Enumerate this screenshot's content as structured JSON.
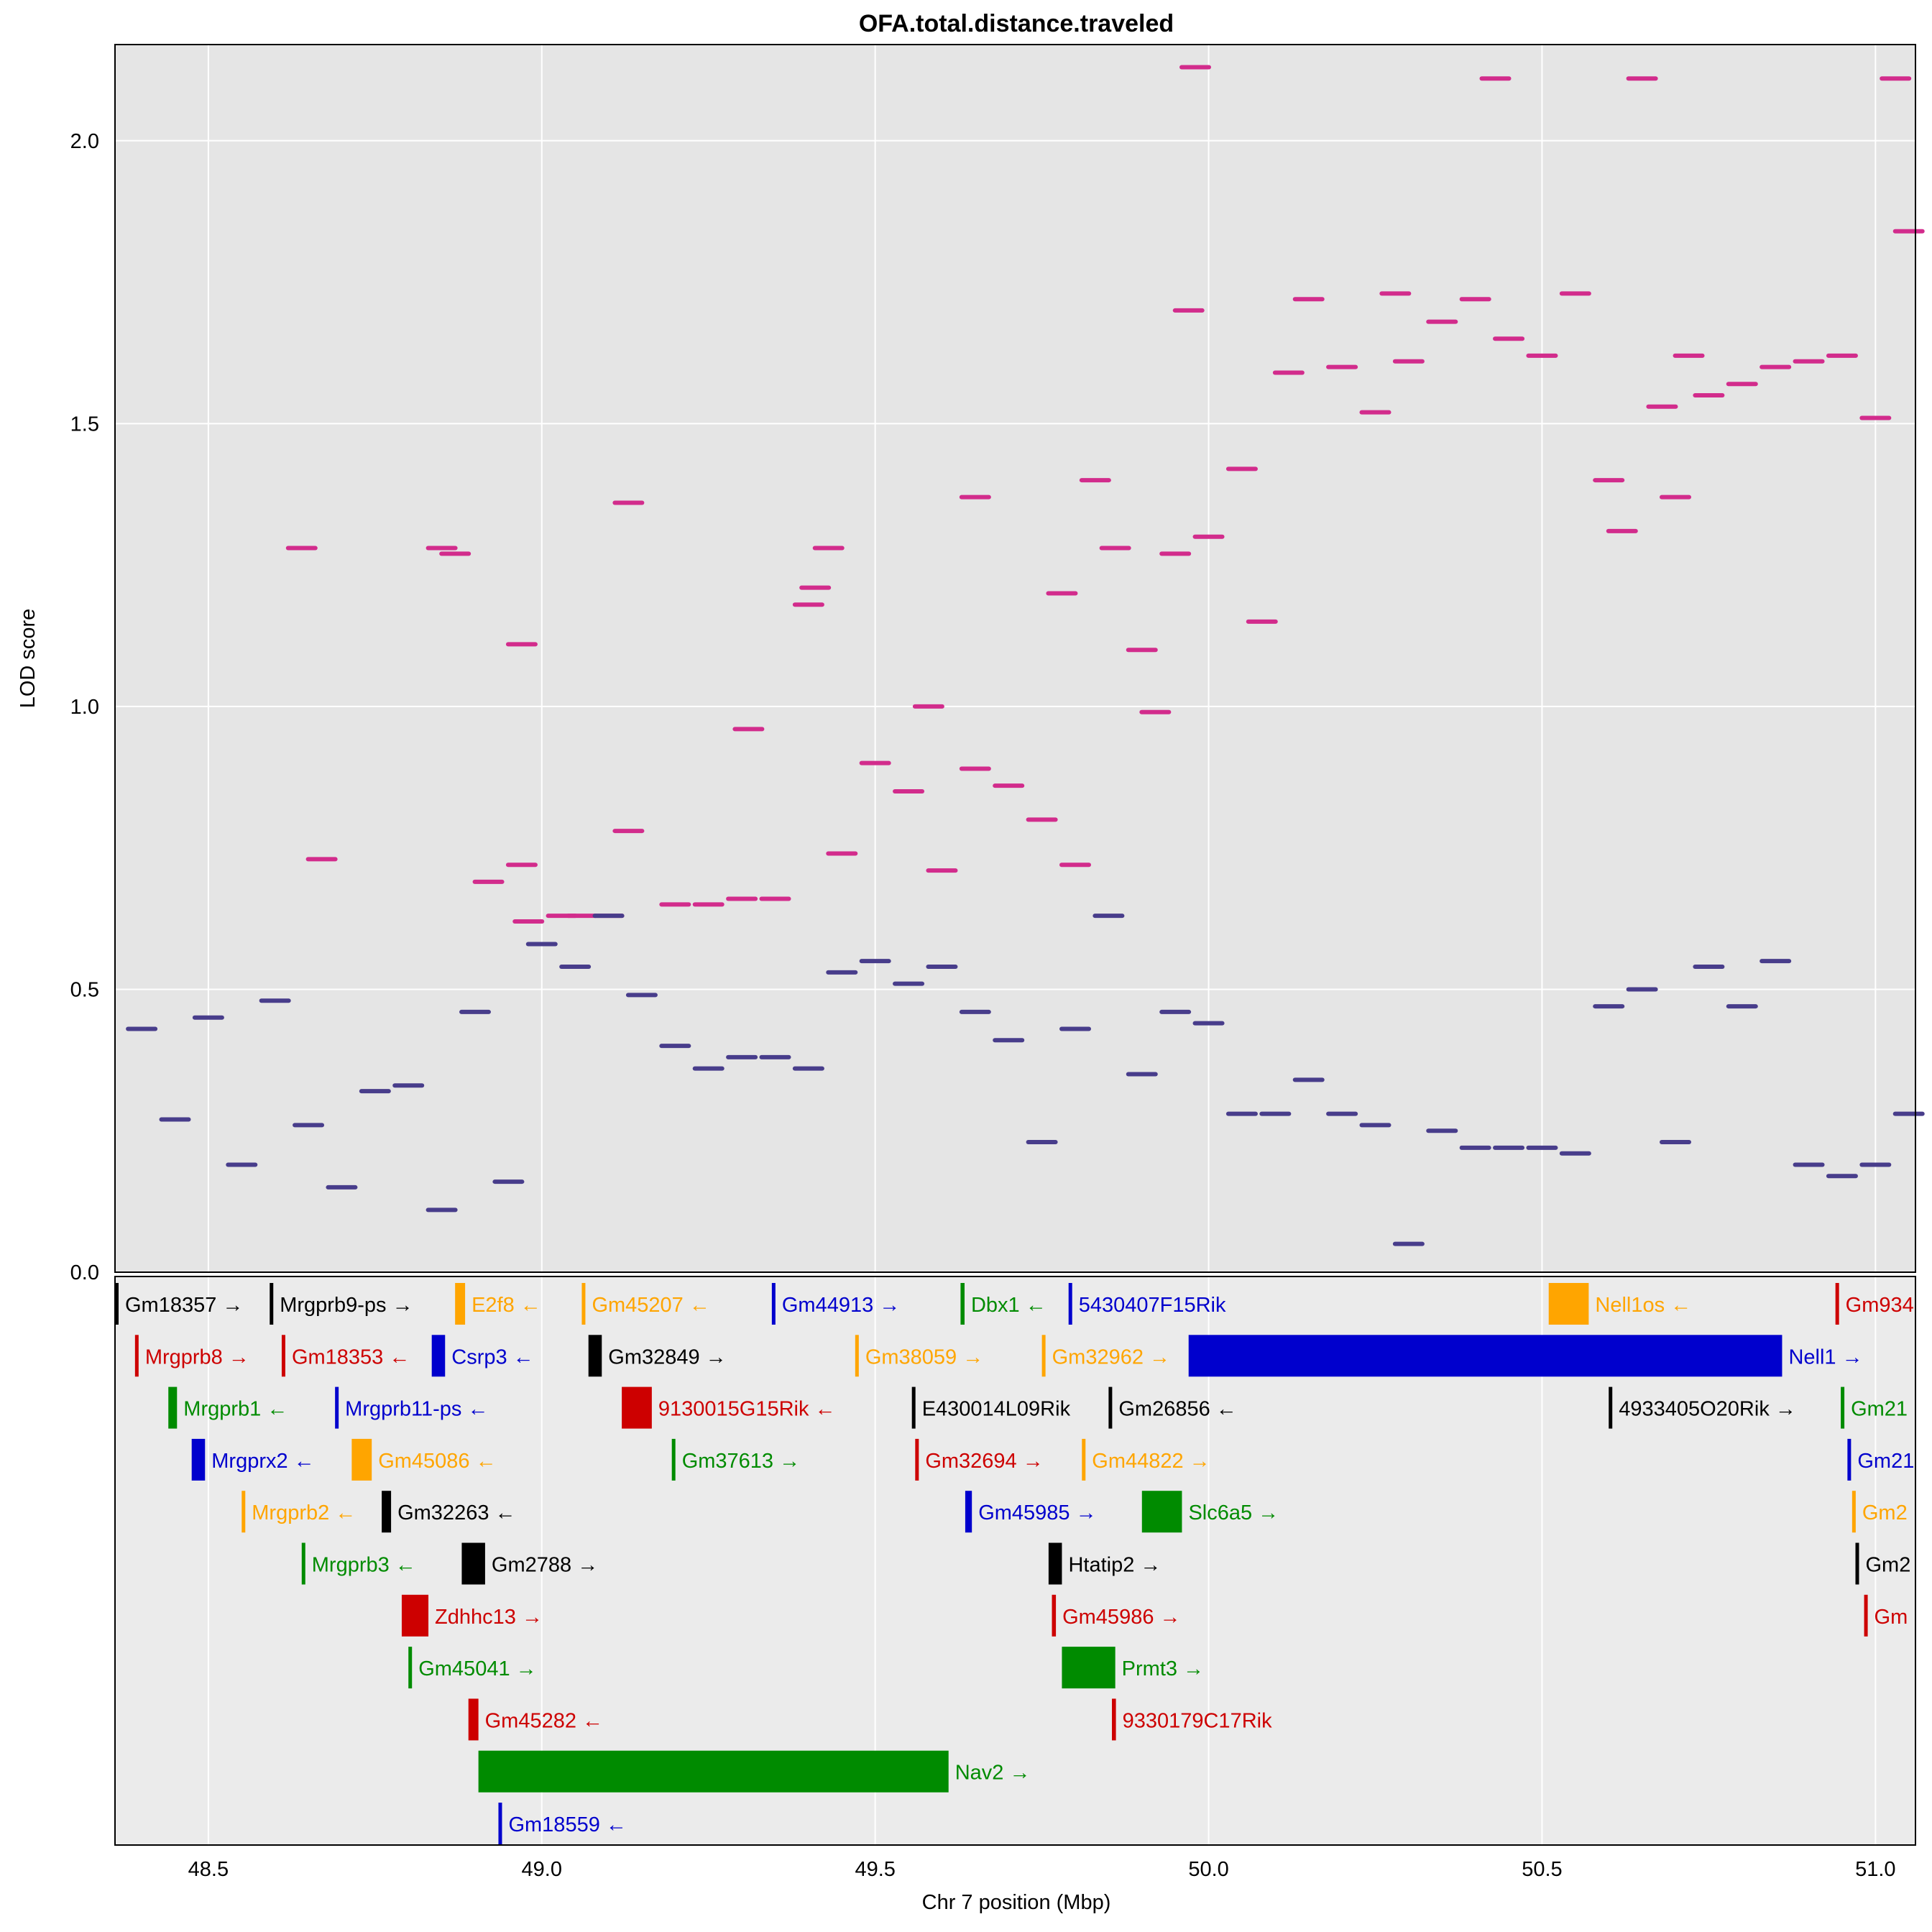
{
  "chart_data": {
    "type": "scatter",
    "title": "OFA.total.distance.traveled",
    "xlabel": "Chr 7 position (Mbp)",
    "ylabel": "LOD score",
    "xlim": [
      48.36,
      51.06
    ],
    "ylim": [
      0.0,
      2.17
    ],
    "x_ticks": [
      48.5,
      49.0,
      49.5,
      50.0,
      50.5,
      51.0
    ],
    "x_tick_labels": [
      "48.5",
      "49.0",
      "49.5",
      "50.0",
      "50.5",
      "51.0"
    ],
    "y_ticks": [
      0.0,
      0.5,
      1.0,
      1.5,
      2.0
    ],
    "y_tick_labels": [
      "0.0",
      "0.5",
      "1.0",
      "1.5",
      "2.0"
    ],
    "grid": true,
    "background": "#e5e5e5",
    "series": [
      {
        "color": "#d22c8c",
        "description_points": [
          [
            48.64,
            1.28
          ],
          [
            48.67,
            0.73
          ],
          [
            48.85,
            1.28
          ],
          [
            48.87,
            1.27
          ],
          [
            48.92,
            0.69
          ],
          [
            48.97,
            1.11
          ],
          [
            48.97,
            0.72
          ],
          [
            48.98,
            0.62
          ],
          [
            49.03,
            0.63
          ],
          [
            49.06,
            0.63
          ],
          [
            49.1,
            0.63
          ],
          [
            49.13,
            1.36
          ],
          [
            49.13,
            0.78
          ],
          [
            49.2,
            0.65
          ],
          [
            49.25,
            0.65
          ],
          [
            49.3,
            0.66
          ],
          [
            49.31,
            0.96
          ],
          [
            49.35,
            0.66
          ],
          [
            49.4,
            1.18
          ],
          [
            49.41,
            1.21
          ],
          [
            49.43,
            1.28
          ],
          [
            49.45,
            0.74
          ],
          [
            49.5,
            0.9
          ],
          [
            49.55,
            0.85
          ],
          [
            49.58,
            1.0
          ],
          [
            49.6,
            0.71
          ],
          [
            49.65,
            1.37
          ],
          [
            49.65,
            0.89
          ],
          [
            49.7,
            0.86
          ],
          [
            49.75,
            0.8
          ],
          [
            49.78,
            1.2
          ],
          [
            49.8,
            0.72
          ],
          [
            49.83,
            1.4
          ],
          [
            49.86,
            1.28
          ],
          [
            49.9,
            1.1
          ],
          [
            49.92,
            0.99
          ],
          [
            49.95,
            1.27
          ],
          [
            49.97,
            1.7
          ],
          [
            49.98,
            2.13
          ],
          [
            50.0,
            1.3
          ],
          [
            50.05,
            1.42
          ],
          [
            50.08,
            1.15
          ],
          [
            50.12,
            1.59
          ],
          [
            50.15,
            1.72
          ],
          [
            50.2,
            1.6
          ],
          [
            50.25,
            1.52
          ],
          [
            50.28,
            1.73
          ],
          [
            50.3,
            1.61
          ],
          [
            50.35,
            1.68
          ],
          [
            50.4,
            1.72
          ],
          [
            50.43,
            2.11
          ],
          [
            50.45,
            1.65
          ],
          [
            50.5,
            1.62
          ],
          [
            50.55,
            1.73
          ],
          [
            50.6,
            1.4
          ],
          [
            50.62,
            1.31
          ],
          [
            50.65,
            2.11
          ],
          [
            50.68,
            1.53
          ],
          [
            50.7,
            1.37
          ],
          [
            50.72,
            1.62
          ],
          [
            50.75,
            1.55
          ],
          [
            50.8,
            1.57
          ],
          [
            50.85,
            1.6
          ],
          [
            50.9,
            1.61
          ],
          [
            50.95,
            1.62
          ],
          [
            51.0,
            1.51
          ],
          [
            51.03,
            2.11
          ],
          [
            51.05,
            1.84
          ]
        ]
      },
      {
        "color": "#483d8b",
        "description_points": [
          [
            48.4,
            0.43
          ],
          [
            48.45,
            0.27
          ],
          [
            48.5,
            0.45
          ],
          [
            48.55,
            0.19
          ],
          [
            48.6,
            0.48
          ],
          [
            48.65,
            0.26
          ],
          [
            48.7,
            0.15
          ],
          [
            48.75,
            0.32
          ],
          [
            48.8,
            0.33
          ],
          [
            48.85,
            0.11
          ],
          [
            48.9,
            0.46
          ],
          [
            48.95,
            0.16
          ],
          [
            49.0,
            0.58
          ],
          [
            49.05,
            0.54
          ],
          [
            49.1,
            0.63
          ],
          [
            49.15,
            0.49
          ],
          [
            49.2,
            0.4
          ],
          [
            49.25,
            0.36
          ],
          [
            49.3,
            0.38
          ],
          [
            49.35,
            0.38
          ],
          [
            49.4,
            0.36
          ],
          [
            49.45,
            0.53
          ],
          [
            49.5,
            0.55
          ],
          [
            49.55,
            0.51
          ],
          [
            49.6,
            0.54
          ],
          [
            49.65,
            0.46
          ],
          [
            49.7,
            0.41
          ],
          [
            49.75,
            0.23
          ],
          [
            49.8,
            0.43
          ],
          [
            49.85,
            0.63
          ],
          [
            49.9,
            0.35
          ],
          [
            49.95,
            0.46
          ],
          [
            50.0,
            0.44
          ],
          [
            50.05,
            0.28
          ],
          [
            50.1,
            0.28
          ],
          [
            50.15,
            0.34
          ],
          [
            50.2,
            0.28
          ],
          [
            50.25,
            0.26
          ],
          [
            50.3,
            0.05
          ],
          [
            50.35,
            0.25
          ],
          [
            50.4,
            0.22
          ],
          [
            50.45,
            0.22
          ],
          [
            50.5,
            0.22
          ],
          [
            50.55,
            0.21
          ],
          [
            50.6,
            0.47
          ],
          [
            50.65,
            0.5
          ],
          [
            50.7,
            0.23
          ],
          [
            50.75,
            0.54
          ],
          [
            50.8,
            0.47
          ],
          [
            50.85,
            0.55
          ],
          [
            50.9,
            0.19
          ],
          [
            50.95,
            0.17
          ],
          [
            51.0,
            0.19
          ],
          [
            51.05,
            0.28
          ]
        ]
      }
    ],
    "genes": [
      {
        "name": "Gm18357",
        "strand": "→",
        "start": 48.36,
        "end": 48.365,
        "row": 0,
        "color": "#000000"
      },
      {
        "name": "Mrgprb9-ps",
        "strand": "→",
        "start": 48.592,
        "end": 48.596,
        "row": 0,
        "color": "#000000"
      },
      {
        "name": "E2f8",
        "strand": "←",
        "start": 48.87,
        "end": 48.885,
        "row": 0,
        "color": "#ffa500"
      },
      {
        "name": "Gm45207",
        "strand": "←",
        "start": 49.06,
        "end": 49.064,
        "row": 0,
        "color": "#ffa500"
      },
      {
        "name": "Gm44913",
        "strand": "→",
        "start": 49.345,
        "end": 49.35,
        "row": 0,
        "color": "#0000cd"
      },
      {
        "name": "Dbx1",
        "strand": "←",
        "start": 49.628,
        "end": 49.634,
        "row": 0,
        "color": "#008b00"
      },
      {
        "name": "5430407F15Rik",
        "strand": "",
        "start": 49.79,
        "end": 49.795,
        "row": 0,
        "color": "#0000cd"
      },
      {
        "name": "Nell1os",
        "strand": "←",
        "start": 50.51,
        "end": 50.57,
        "row": 0,
        "color": "#ffa500"
      },
      {
        "name": "Gm934",
        "strand": "",
        "start": 50.94,
        "end": 50.945,
        "row": 0,
        "color": "#cd0000"
      },
      {
        "name": "Mrgprb8",
        "strand": "→",
        "start": 48.39,
        "end": 48.394,
        "row": 1,
        "color": "#cd0000"
      },
      {
        "name": "Gm18353",
        "strand": "←",
        "start": 48.61,
        "end": 48.614,
        "row": 1,
        "color": "#cd0000"
      },
      {
        "name": "Csrp3",
        "strand": "←",
        "start": 48.835,
        "end": 48.855,
        "row": 1,
        "color": "#0000cd"
      },
      {
        "name": "Gm32849",
        "strand": "→",
        "start": 49.07,
        "end": 49.09,
        "row": 1,
        "color": "#000000"
      },
      {
        "name": "Gm38059",
        "strand": "→",
        "start": 49.47,
        "end": 49.474,
        "row": 1,
        "color": "#ffa500"
      },
      {
        "name": "Gm32962",
        "strand": "→",
        "start": 49.75,
        "end": 49.754,
        "row": 1,
        "color": "#ffa500"
      },
      {
        "name": "Nell1",
        "strand": "→",
        "start": 49.97,
        "end": 50.86,
        "row": 1,
        "color": "#0000cd"
      },
      {
        "name": "Mrgprb1",
        "strand": "←",
        "start": 48.44,
        "end": 48.453,
        "row": 2,
        "color": "#008b00"
      },
      {
        "name": "Mrgprb11-ps",
        "strand": "←",
        "start": 48.69,
        "end": 48.694,
        "row": 2,
        "color": "#0000cd"
      },
      {
        "name": "9130015G15Rik",
        "strand": "←",
        "start": 49.12,
        "end": 49.165,
        "row": 2,
        "color": "#cd0000"
      },
      {
        "name": "E430014L09Rik",
        "strand": "",
        "start": 49.555,
        "end": 49.559,
        "row": 2,
        "color": "#000000"
      },
      {
        "name": "Gm26856",
        "strand": "←",
        "start": 49.85,
        "end": 49.854,
        "row": 2,
        "color": "#000000"
      },
      {
        "name": "4933405O20Rik",
        "strand": "→",
        "start": 50.6,
        "end": 50.604,
        "row": 2,
        "color": "#000000"
      },
      {
        "name": "Gm21",
        "strand": "",
        "start": 50.948,
        "end": 50.952,
        "row": 2,
        "color": "#008b00"
      },
      {
        "name": "Mrgprx2",
        "strand": "←",
        "start": 48.475,
        "end": 48.495,
        "row": 3,
        "color": "#0000cd"
      },
      {
        "name": "Gm45086",
        "strand": "←",
        "start": 48.715,
        "end": 48.745,
        "row": 3,
        "color": "#ffa500"
      },
      {
        "name": "Gm37613",
        "strand": "→",
        "start": 49.195,
        "end": 49.199,
        "row": 3,
        "color": "#008b00"
      },
      {
        "name": "Gm32694",
        "strand": "→",
        "start": 49.56,
        "end": 49.564,
        "row": 3,
        "color": "#cd0000"
      },
      {
        "name": "Gm44822",
        "strand": "→",
        "start": 49.81,
        "end": 49.814,
        "row": 3,
        "color": "#ffa500"
      },
      {
        "name": "Gm21",
        "strand": "",
        "start": 50.958,
        "end": 50.962,
        "row": 3,
        "color": "#0000cd"
      },
      {
        "name": "Mrgprb2",
        "strand": "←",
        "start": 48.55,
        "end": 48.554,
        "row": 4,
        "color": "#ffa500"
      },
      {
        "name": "Gm32263",
        "strand": "←",
        "start": 48.76,
        "end": 48.774,
        "row": 4,
        "color": "#000000"
      },
      {
        "name": "Gm45985",
        "strand": "→",
        "start": 49.635,
        "end": 49.645,
        "row": 4,
        "color": "#0000cd"
      },
      {
        "name": "Slc6a5",
        "strand": "→",
        "start": 49.9,
        "end": 49.96,
        "row": 4,
        "color": "#008b00"
      },
      {
        "name": "Gm2",
        "strand": "",
        "start": 50.965,
        "end": 50.969,
        "row": 4,
        "color": "#ffa500"
      },
      {
        "name": "Mrgprb3",
        "strand": "←",
        "start": 48.64,
        "end": 48.644,
        "row": 5,
        "color": "#008b00"
      },
      {
        "name": "Gm2788",
        "strand": "→",
        "start": 48.88,
        "end": 48.915,
        "row": 5,
        "color": "#000000"
      },
      {
        "name": "Htatip2",
        "strand": "→",
        "start": 49.76,
        "end": 49.78,
        "row": 5,
        "color": "#000000"
      },
      {
        "name": "Gm2",
        "strand": "",
        "start": 50.97,
        "end": 50.974,
        "row": 5,
        "color": "#000000"
      },
      {
        "name": "Zdhhc13",
        "strand": "→",
        "start": 48.79,
        "end": 48.83,
        "row": 6,
        "color": "#cd0000"
      },
      {
        "name": "Gm45986",
        "strand": "→",
        "start": 49.765,
        "end": 49.771,
        "row": 6,
        "color": "#cd0000"
      },
      {
        "name": "Gm",
        "strand": "",
        "start": 50.983,
        "end": 50.987,
        "row": 6,
        "color": "#cd0000"
      },
      {
        "name": "Gm45041",
        "strand": "→",
        "start": 48.8,
        "end": 48.804,
        "row": 7,
        "color": "#008b00"
      },
      {
        "name": "Prmt3",
        "strand": "→",
        "start": 49.78,
        "end": 49.86,
        "row": 7,
        "color": "#008b00"
      },
      {
        "name": "Gm45282",
        "strand": "←",
        "start": 48.89,
        "end": 48.905,
        "row": 8,
        "color": "#cd0000"
      },
      {
        "name": "9330179C17Rik",
        "strand": "",
        "start": 49.855,
        "end": 49.861,
        "row": 8,
        "color": "#cd0000"
      },
      {
        "name": "Nav2",
        "strand": "→",
        "start": 48.905,
        "end": 49.61,
        "row": 9,
        "color": "#008b00"
      },
      {
        "name": "Gm18559",
        "strand": "←",
        "start": 48.935,
        "end": 48.939,
        "row": 10,
        "color": "#0000cd"
      }
    ]
  }
}
